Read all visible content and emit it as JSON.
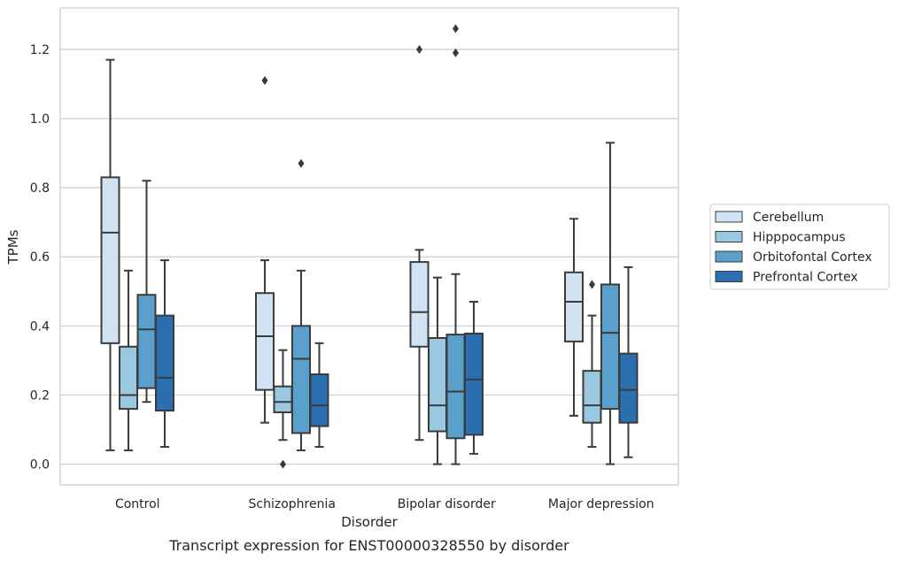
{
  "chart_data": {
    "type": "box",
    "caption": "Transcript expression for ENST00000328550 by disorder",
    "xlabel": "Disorder",
    "ylabel": "TPMs",
    "ylim": [
      -0.06,
      1.32
    ],
    "yticks": [
      "0.0",
      "0.2",
      "0.4",
      "0.6",
      "0.8",
      "1.0",
      "1.2"
    ],
    "grid": true,
    "legend_position": "right",
    "categories": [
      "Control",
      "Schizophrenia",
      "Bipolar disorder",
      "Major depression"
    ],
    "series": [
      {
        "name": "Cerebellum",
        "color": "#d1e2f2",
        "boxes": [
          {
            "whisker_low": 0.04,
            "q1": 0.35,
            "median": 0.67,
            "q3": 0.83,
            "whisker_high": 1.17,
            "outliers": []
          },
          {
            "whisker_low": 0.12,
            "q1": 0.215,
            "median": 0.37,
            "q3": 0.495,
            "whisker_high": 0.59,
            "outliers": [
              1.11
            ]
          },
          {
            "whisker_low": 0.07,
            "q1": 0.34,
            "median": 0.44,
            "q3": 0.585,
            "whisker_high": 0.62,
            "outliers": [
              1.2
            ]
          },
          {
            "whisker_low": 0.14,
            "q1": 0.355,
            "median": 0.47,
            "q3": 0.555,
            "whisker_high": 0.71,
            "outliers": []
          }
        ]
      },
      {
        "name": "Hipppocampus",
        "color": "#9ac8e0",
        "boxes": [
          {
            "whisker_low": 0.04,
            "q1": 0.16,
            "median": 0.2,
            "q3": 0.34,
            "whisker_high": 0.56,
            "outliers": []
          },
          {
            "whisker_low": 0.07,
            "q1": 0.15,
            "median": 0.18,
            "q3": 0.225,
            "whisker_high": 0.33,
            "outliers": [
              0.0
            ]
          },
          {
            "whisker_low": 0.0,
            "q1": 0.095,
            "median": 0.17,
            "q3": 0.365,
            "whisker_high": 0.54,
            "outliers": []
          },
          {
            "whisker_low": 0.05,
            "q1": 0.12,
            "median": 0.17,
            "q3": 0.27,
            "whisker_high": 0.43,
            "outliers": [
              0.52
            ]
          }
        ]
      },
      {
        "name": "Orbitofontal Cortex",
        "color": "#5aa0cd",
        "boxes": [
          {
            "whisker_low": 0.18,
            "q1": 0.22,
            "median": 0.39,
            "q3": 0.49,
            "whisker_high": 0.82,
            "outliers": []
          },
          {
            "whisker_low": 0.04,
            "q1": 0.09,
            "median": 0.305,
            "q3": 0.4,
            "whisker_high": 0.56,
            "outliers": [
              0.87
            ]
          },
          {
            "whisker_low": 0.0,
            "q1": 0.075,
            "median": 0.21,
            "q3": 0.375,
            "whisker_high": 0.55,
            "outliers": [
              1.26,
              1.19
            ]
          },
          {
            "whisker_low": 0.0,
            "q1": 0.16,
            "median": 0.38,
            "q3": 0.52,
            "whisker_high": 0.93,
            "outliers": []
          }
        ]
      },
      {
        "name": "Prefrontal Cortex",
        "color": "#2a70b0",
        "boxes": [
          {
            "whisker_low": 0.05,
            "q1": 0.155,
            "median": 0.25,
            "q3": 0.43,
            "whisker_high": 0.59,
            "outliers": []
          },
          {
            "whisker_low": 0.05,
            "q1": 0.11,
            "median": 0.17,
            "q3": 0.26,
            "whisker_high": 0.35,
            "outliers": []
          },
          {
            "whisker_low": 0.03,
            "q1": 0.085,
            "median": 0.245,
            "q3": 0.378,
            "whisker_high": 0.47,
            "outliers": []
          },
          {
            "whisker_low": 0.02,
            "q1": 0.12,
            "median": 0.215,
            "q3": 0.32,
            "whisker_high": 0.57,
            "outliers": []
          }
        ]
      }
    ]
  }
}
